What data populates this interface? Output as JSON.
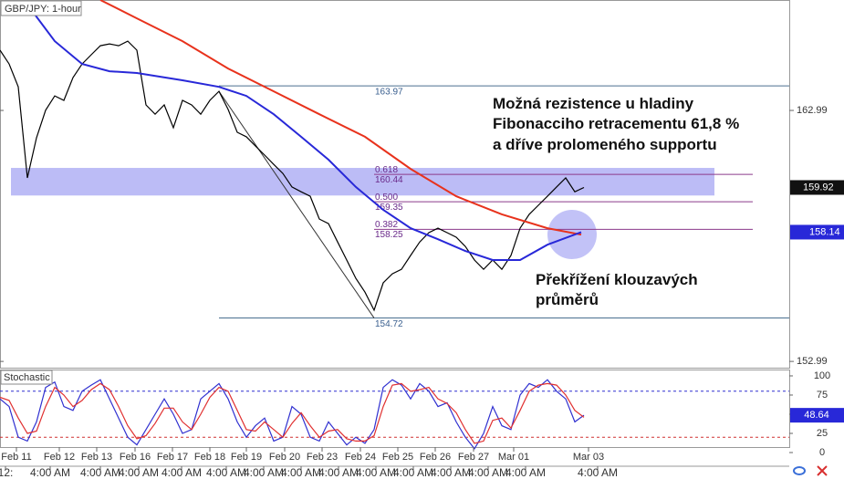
{
  "chart_data": [
    {
      "type": "line",
      "title": "GBP/JPY: 1-hour",
      "xlim": [
        0,
        86.5
      ],
      "ylim": [
        152.74,
        167.39
      ],
      "yticks": [
        162.99,
        152.99
      ],
      "series": [
        {
          "color": "#000000",
          "x": [
            0,
            1,
            2,
            3,
            4,
            5,
            6,
            7,
            8,
            9,
            10,
            11,
            12,
            13,
            14,
            15,
            16,
            17,
            18,
            19,
            20,
            21,
            22,
            23,
            24,
            25,
            26,
            27,
            28,
            29,
            30,
            31,
            32,
            33,
            34,
            35,
            36,
            37,
            38,
            39,
            40,
            41,
            42,
            43,
            44,
            45,
            46,
            47,
            48,
            49,
            50,
            51,
            52,
            53,
            54,
            55,
            56,
            57,
            58,
            59,
            60,
            61,
            62,
            63,
            64
          ],
          "values": [
            165.39,
            164.84,
            163.93,
            160.3,
            161.9,
            163.0,
            163.57,
            163.39,
            164.3,
            164.84,
            165.21,
            165.57,
            165.64,
            165.57,
            165.75,
            165.39,
            163.21,
            162.84,
            163.21,
            162.3,
            163.39,
            163.21,
            162.84,
            163.39,
            163.75,
            163.03,
            162.12,
            161.94,
            161.57,
            161.21,
            160.84,
            160.48,
            159.94,
            159.75,
            159.57,
            158.66,
            158.48,
            157.75,
            157.03,
            156.3,
            155.75,
            155.03,
            156.12,
            156.48,
            156.66,
            157.21,
            157.75,
            158.12,
            158.3,
            158.12,
            157.94,
            157.57,
            157.03,
            156.66,
            157.03,
            156.66,
            157.21,
            158.3,
            158.85,
            159.21,
            159.57,
            159.94,
            160.3,
            159.75,
            159.92
          ]
        },
        {
          "color": "#e8321c",
          "x": [
            11,
            15,
            20,
            25,
            30,
            35,
            40,
            45,
            50,
            55,
            60,
            63.7
          ],
          "values": [
            167.39,
            166.66,
            165.75,
            164.66,
            163.75,
            162.84,
            161.94,
            160.66,
            159.57,
            158.85,
            158.3,
            158.04
          ]
        },
        {
          "color": "#2828d8",
          "x": [
            3,
            6,
            9,
            12,
            15,
            20,
            24,
            27,
            30,
            33,
            36,
            39,
            42,
            45,
            48,
            51,
            54,
            57,
            60,
            63.7
          ],
          "values": [
            167.21,
            165.75,
            164.84,
            164.55,
            164.48,
            164.19,
            163.93,
            163.57,
            162.84,
            161.94,
            161.03,
            159.94,
            159.03,
            158.3,
            157.86,
            157.39,
            157.03,
            157.03,
            157.64,
            158.14
          ]
        }
      ],
      "fib_levels": [
        {
          "value": 163.97
        },
        {
          "ratio": "0.618",
          "value": 160.44
        },
        {
          "ratio": "0.500",
          "value": 159.35
        },
        {
          "ratio": "0.382",
          "value": 158.25
        },
        {
          "value": 154.72
        }
      ],
      "trendline": {
        "x": [
          24,
          41
        ],
        "values": [
          163.75,
          154.72
        ]
      },
      "zone": [
        159.6,
        160.7
      ],
      "last_price": 159.92,
      "ma_value": 158.14,
      "annotations": [
        {
          "lines": [
            "Možná rezistence u hladiny",
            "Fibonacciho retracementu 61,8 %",
            "a dříve prolomeného supportu"
          ]
        },
        {
          "lines": [
            "Překřížení klouzavých",
            "průměrů"
          ]
        }
      ]
    },
    {
      "type": "line",
      "title": "Stochastic",
      "xlim": [
        0,
        86.5
      ],
      "ylim": [
        -10.7,
        108.3
      ],
      "yticks": [
        100,
        75,
        50,
        25,
        0
      ],
      "levels": [
        80,
        20
      ],
      "last_value": 48.64,
      "x": [
        0,
        1,
        2,
        3,
        4,
        5,
        6,
        7,
        8,
        9,
        10,
        11,
        12,
        13,
        14,
        15,
        16,
        17,
        18,
        19,
        20,
        21,
        22,
        23,
        24,
        25,
        26,
        27,
        28,
        29,
        30,
        31,
        32,
        33,
        34,
        35,
        36,
        37,
        38,
        39,
        40,
        41,
        42,
        43,
        44,
        45,
        46,
        47,
        48,
        49,
        50,
        51,
        52,
        53,
        54,
        55,
        56,
        57,
        58,
        59,
        60,
        61,
        62,
        63,
        64
      ],
      "series": [
        {
          "color": "#3030d0",
          "values": [
            70,
            60,
            20,
            15,
            40,
            85,
            92,
            60,
            55,
            80,
            88,
            95,
            70,
            45,
            20,
            10,
            30,
            50,
            70,
            50,
            25,
            30,
            70,
            80,
            90,
            70,
            40,
            20,
            35,
            45,
            15,
            20,
            60,
            50,
            20,
            15,
            40,
            25,
            10,
            20,
            12,
            30,
            85,
            95,
            88,
            70,
            90,
            80,
            60,
            65,
            40,
            20,
            5,
            25,
            60,
            35,
            30,
            75,
            90,
            85,
            95,
            80,
            70,
            40,
            48.64
          ]
        },
        {
          "color": "#e03030",
          "values": [
            72,
            68,
            45,
            25,
            28,
            60,
            85,
            75,
            60,
            68,
            82,
            90,
            82,
            60,
            35,
            18,
            22,
            38,
            58,
            58,
            40,
            30,
            50,
            72,
            85,
            80,
            55,
            30,
            28,
            40,
            30,
            20,
            38,
            52,
            35,
            20,
            28,
            30,
            18,
            15,
            15,
            22,
            60,
            88,
            90,
            80,
            82,
            85,
            70,
            64,
            52,
            30,
            12,
            15,
            42,
            45,
            32,
            55,
            80,
            88,
            90,
            88,
            75,
            55,
            46
          ]
        }
      ],
      "xticks": [
        {
          "value": 1.8,
          "label": "Feb 11"
        },
        {
          "value": 6.5,
          "label": "Feb 12"
        },
        {
          "value": 10.6,
          "label": "Feb 13"
        },
        {
          "value": 14.8,
          "label": "Feb 16"
        },
        {
          "value": 18.9,
          "label": "Feb 17"
        },
        {
          "value": 23,
          "label": "Feb 18"
        },
        {
          "value": 27,
          "label": "Feb 19"
        },
        {
          "value": 31.2,
          "label": "Feb 20"
        },
        {
          "value": 35.3,
          "label": "Feb 23"
        },
        {
          "value": 39.5,
          "label": "Feb 24"
        },
        {
          "value": 43.6,
          "label": "Feb 25"
        },
        {
          "value": 47.7,
          "label": "Feb 26"
        },
        {
          "value": 51.9,
          "label": "Feb 27"
        },
        {
          "value": 56.3,
          "label": "Mar 01"
        },
        {
          "value": 64.5,
          "label": "Mar 03"
        }
      ],
      "xticks_minor": [
        {
          "value": 0.6,
          "label": "12:"
        },
        {
          "value": 5.5,
          "label": "4:00 AM"
        },
        {
          "value": 11,
          "label": "4:00 AM"
        },
        {
          "value": 15.2,
          "label": "4:00 AM"
        },
        {
          "value": 19.9,
          "label": "4:00 AM"
        },
        {
          "value": 24.8,
          "label": "4:00 AM"
        },
        {
          "value": 28.9,
          "label": "4:00 AM"
        },
        {
          "value": 33,
          "label": "4:00 AM"
        },
        {
          "value": 37.1,
          "label": "4:00 AM"
        },
        {
          "value": 41.2,
          "label": "4:00 AM"
        },
        {
          "value": 45.3,
          "label": "4:00 AM"
        },
        {
          "value": 49.4,
          "label": "4:00 AM"
        },
        {
          "value": 53.5,
          "label": "4:00 AM"
        },
        {
          "value": 57.6,
          "label": "4:00 AM"
        },
        {
          "value": 65.5,
          "label": "4:00 AM"
        }
      ]
    }
  ]
}
